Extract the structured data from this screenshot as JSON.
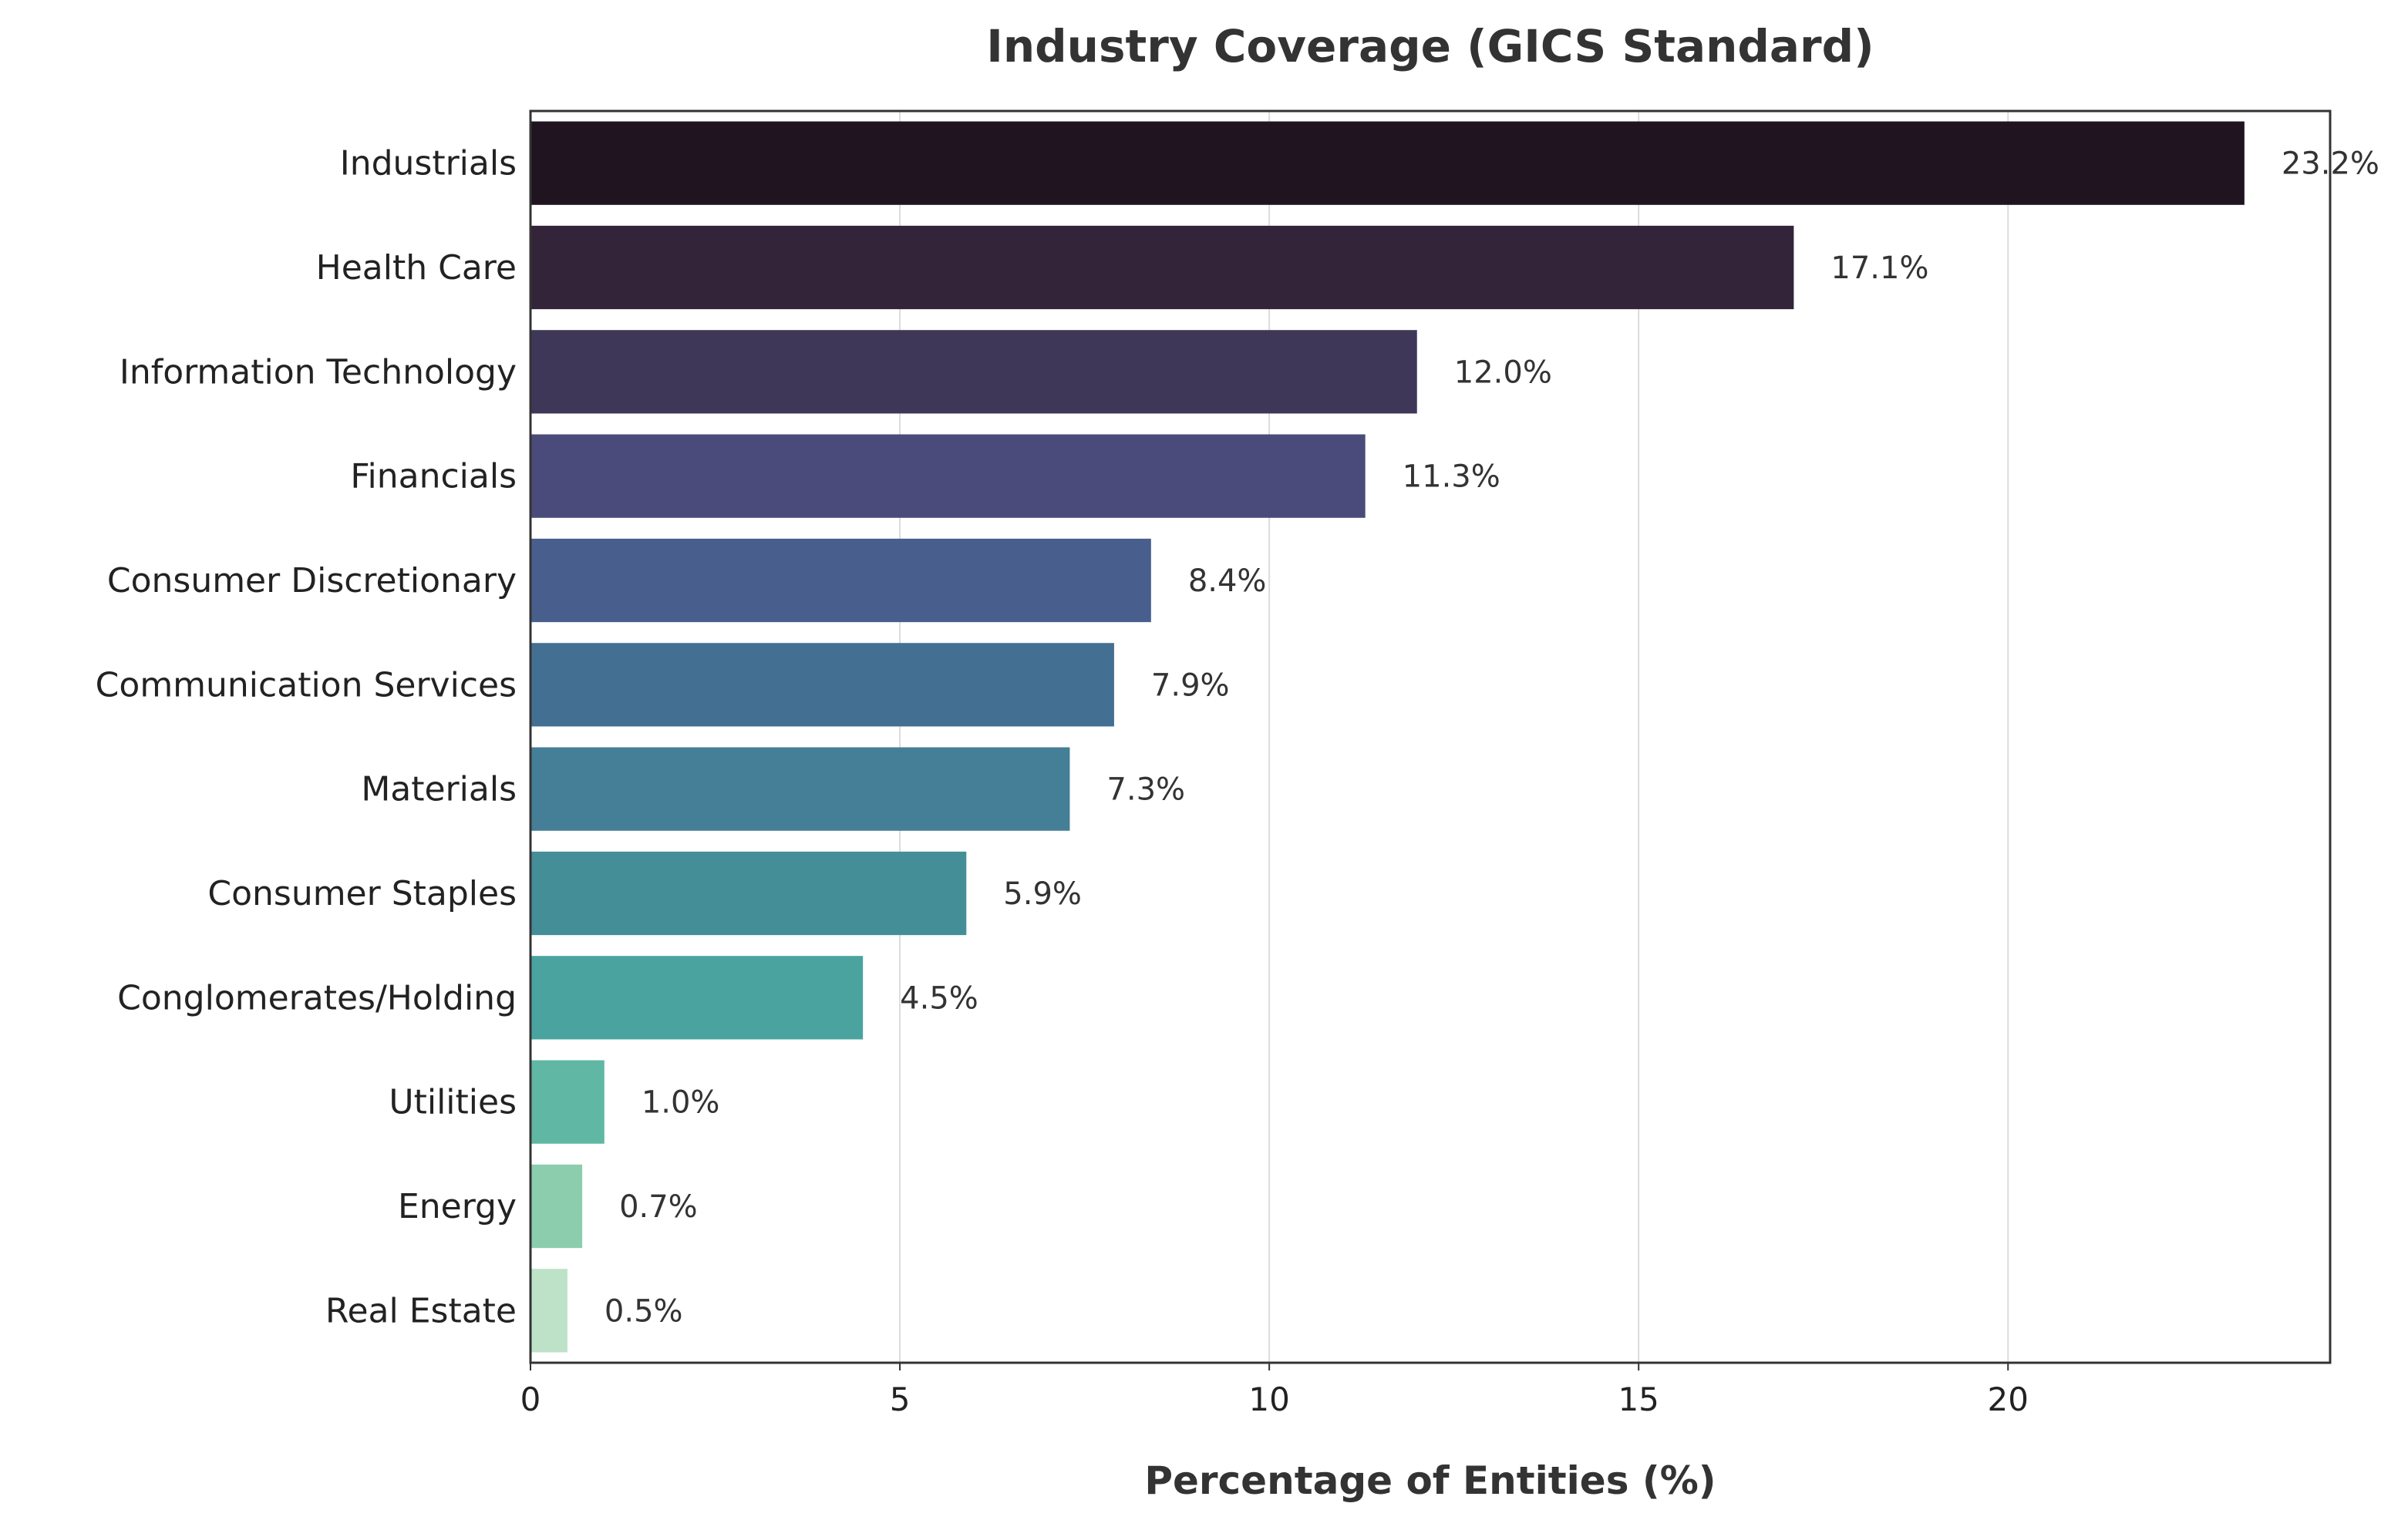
{
  "chart_data": {
    "type": "bar",
    "orientation": "horizontal",
    "title": "Industry Coverage (GICS Standard)",
    "xlabel": "Percentage of Entities (%)",
    "ylabel": "",
    "xlim": [
      0,
      24.36
    ],
    "xticks": [
      0,
      5,
      10,
      15,
      20
    ],
    "grid": "vertical",
    "categories": [
      "Industrials",
      "Health Care",
      "Information Technology",
      "Financials",
      "Consumer Discretionary",
      "Communication Services",
      "Materials",
      "Consumer Staples",
      "Conglomerates/Holding",
      "Utilities",
      "Energy",
      "Real Estate"
    ],
    "values": [
      23.2,
      17.1,
      12.0,
      11.3,
      8.4,
      7.9,
      7.3,
      5.9,
      4.5,
      1.0,
      0.7,
      0.5
    ],
    "labels": [
      "23.2%",
      "17.1%",
      "12.0%",
      "11.3%",
      "8.4%",
      "7.9%",
      "7.3%",
      "5.9%",
      "4.5%",
      "1.0%",
      "0.7%",
      "0.5%"
    ],
    "colors": [
      "#1f1420",
      "#33243a",
      "#3f3758",
      "#4a4b7a",
      "#485f8d",
      "#436f92",
      "#457e97",
      "#448e97",
      "#4ba3a0",
      "#60b8a4",
      "#8ccdae",
      "#bde2c8"
    ]
  }
}
